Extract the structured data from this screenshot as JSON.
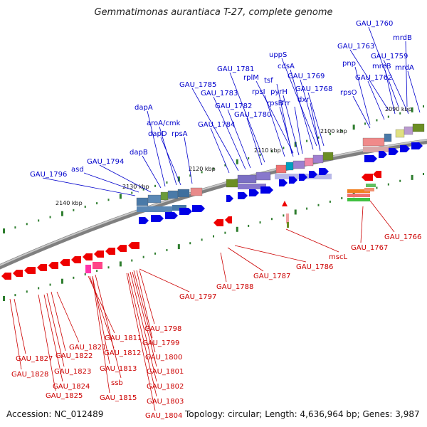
{
  "title": "Gemmatimonas aurantiaca T-27, complete genome",
  "footer": {
    "accession": "Accession: NC_012489",
    "stats": "Topology: circular; Length: 4,636,964 bp; Genes: 3,987"
  },
  "colors": {
    "forward_label": "#0000cc",
    "reverse_label": "#cc0000",
    "forward_gene": "#0000e6",
    "reverse_gene": "#ee0000",
    "backbone": "#808080",
    "tick": "#2e7d2e"
  },
  "kbp_labels": [
    "2090 kbp",
    "2100 kbp",
    "2110 kbp",
    "2120 kbp",
    "2130 kbp",
    "2140 kbp"
  ],
  "top_genes": [
    "GAU_1760",
    "mrdB",
    "GAU_1763",
    "GAU_1759",
    "mreB",
    "mrdA",
    "pnp",
    "GAU_1762",
    "rpsO",
    "uppS",
    "cdsA",
    "GAU_1769",
    "GAU_1768",
    "dxr",
    "rplM",
    "tsf",
    "pyrH",
    "rpsI",
    "rpsB",
    "frr",
    "GAU_1781",
    "GAU_1785",
    "GAU_1783",
    "GAU_1782",
    "GAU_1780",
    "GAU_1784",
    "dapA",
    "aroA/cmk",
    "dapD",
    "rpsA",
    "dapB",
    "GAU_1794",
    "asd",
    "GAU_1796"
  ],
  "bottom_genes": [
    "GAU_1766",
    "GAU_1767",
    "mscL",
    "GAU_1786",
    "GAU_1787",
    "GAU_1788",
    "GAU_1797",
    "GAU_1798",
    "GAU_1799",
    "GAU_1800",
    "GAU_1801",
    "GAU_1802",
    "GAU_1803",
    "GAU_1804",
    "GAU_1811",
    "GAU_1812",
    "GAU_1813",
    "ssb",
    "GAU_1815",
    "GAU_1821",
    "GAU_1822",
    "GAU_1823",
    "GAU_1824",
    "GAU_1825",
    "GAU_1827",
    "GAU_1828"
  ]
}
